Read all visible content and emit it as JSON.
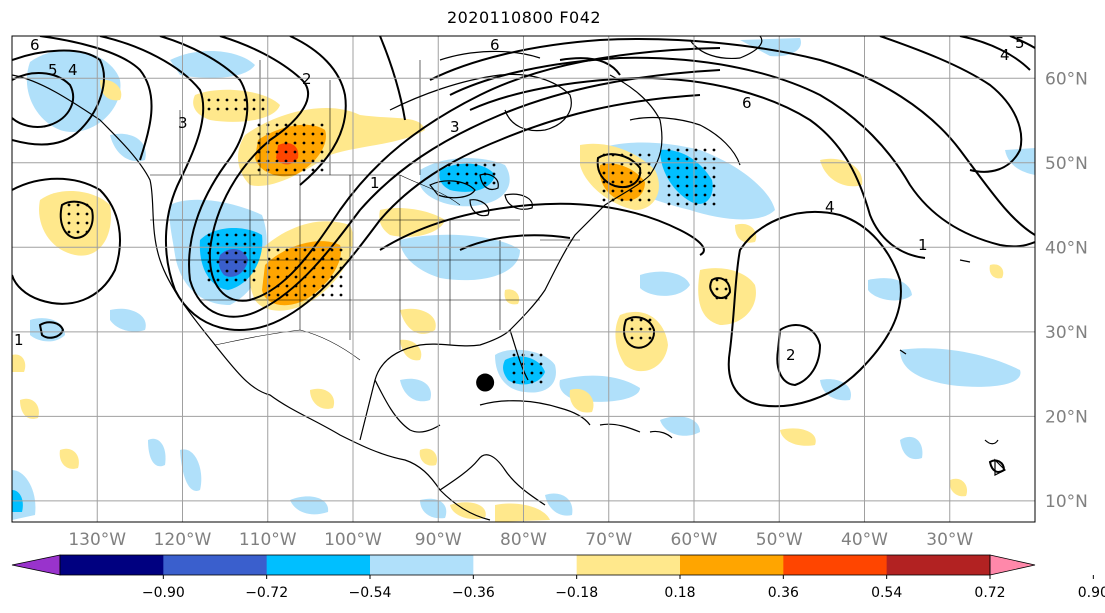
{
  "title": "2020110800 F042",
  "map": {
    "projection": "cylindrical",
    "lon_range": [
      -140,
      -20
    ],
    "lat_range": [
      7.5,
      65
    ],
    "grid_lon": [
      -130,
      -120,
      -110,
      -100,
      -90,
      -80,
      -70,
      -60,
      -50,
      -40,
      -30
    ],
    "grid_lat": [
      10,
      20,
      30,
      40,
      50,
      60
    ],
    "lon_labels": [
      "130°W",
      "120°W",
      "110°W",
      "100°W",
      "90°W",
      "80°W",
      "70°W",
      "60°W",
      "50°W",
      "40°W",
      "30°W"
    ],
    "lat_labels": [
      "10°N",
      "20°N",
      "30°N",
      "40°N",
      "50°N",
      "60°N"
    ],
    "marker": {
      "lon": -84.5,
      "lat": 24.0
    }
  },
  "contour_labels": [
    "6",
    "5",
    "4",
    "2",
    "3",
    "3",
    "6",
    "6",
    "5",
    "4",
    "1",
    "4",
    "1",
    "2",
    "1"
  ],
  "colorbar": {
    "tick_labels": [
      "−0.90",
      "−0.72",
      "−0.54",
      "−0.36",
      "−0.18",
      "0.18",
      "0.36",
      "0.54",
      "0.72",
      "0.90"
    ],
    "colors": [
      "#9933cc",
      "#000080",
      "#3a5fcd",
      "#00bfff",
      "#b0e0fa",
      "#ffffff",
      "#ffe88c",
      "#ffa500",
      "#ff4500",
      "#b22222",
      "#ff88aa"
    ]
  },
  "colors": {
    "land_line": "#000000",
    "grid": "#a0a0a0",
    "light_blue": "#b0e0fa",
    "blue": "#00bfff",
    "dark_blue": "#3a5fcd",
    "yellow": "#ffe88c",
    "orange": "#ffa500",
    "red": "#ff4500"
  }
}
